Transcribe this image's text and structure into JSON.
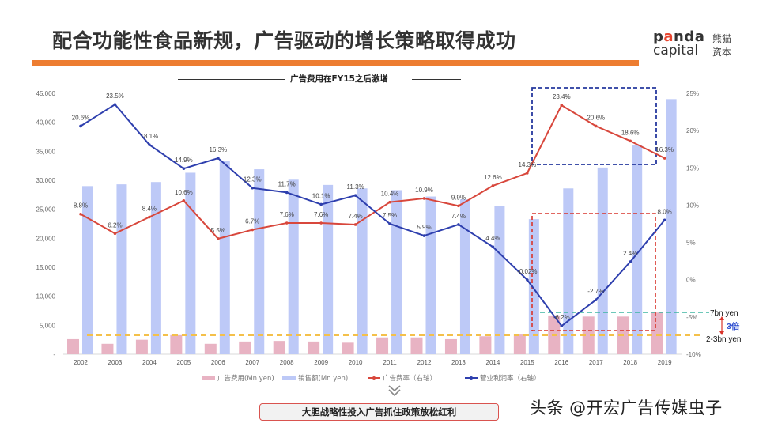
{
  "header": {
    "title": "配合功能性食品新规，广告驱动的增长策略取得成功",
    "accent_color": "#ED7D31",
    "logo": {
      "en_line1_pre": "p",
      "en_line1_o": "a",
      "en_line1_post": "nda",
      "en_line2": "capital",
      "cn_line1": "熊猫",
      "cn_line2": "资本"
    }
  },
  "subtitle": "广告费用在FY15之后激增",
  "colors": {
    "ad_cost_bar": "#E8B3C3",
    "sales_bar": "#BDC9F7",
    "ad_ratio_line": "#D8473C",
    "op_margin_line": "#2E3FAE",
    "blue_box": "#26399E",
    "red_box": "#D9342B",
    "teal_line": "#3DB5A2",
    "yellow_line": "#F4C04A",
    "arrow": "#D9342B",
    "multiplier_text": "#2F4FD0"
  },
  "chart_data": {
    "type": "bar",
    "title": "广告费用在FY15之后激增",
    "categories": [
      "2002",
      "2003",
      "2004",
      "2005",
      "2006",
      "2007",
      "2008",
      "2009",
      "2010",
      "2011",
      "2012",
      "2013",
      "2014",
      "2015",
      "2016",
      "2017",
      "2018",
      "2019"
    ],
    "left_axis": {
      "label": "Mn yen",
      "ylim": [
        0,
        45000
      ],
      "ticks": [
        "45,000",
        "40,000",
        "35,000",
        "30,000",
        "25,000",
        "20,000",
        "15,000",
        "10,000",
        "5,000",
        "-"
      ]
    },
    "right_axis": {
      "label": "%",
      "ylim": [
        -10,
        25
      ],
      "ticks": [
        "25%",
        "20%",
        "15%",
        "10%",
        "5%",
        "0%",
        "-5%",
        "-10%"
      ]
    },
    "grid": false,
    "legend_position": "bottom",
    "series": [
      {
        "name": "广告费用(Mn yen)",
        "type": "bar",
        "axis": "left",
        "values": [
          2600,
          1800,
          2500,
          3300,
          1800,
          2200,
          2300,
          2200,
          2000,
          2900,
          2900,
          2600,
          3100,
          3400,
          6700,
          6500,
          6500,
          7200
        ]
      },
      {
        "name": "销售额(Mn yen)",
        "type": "bar",
        "axis": "left",
        "values": [
          29000,
          29300,
          29700,
          31300,
          33400,
          31900,
          30100,
          29200,
          28600,
          28300,
          27200,
          26700,
          25500,
          23300,
          28600,
          32200,
          36100,
          44000
        ]
      },
      {
        "name": "广告费率（右轴）",
        "type": "line",
        "axis": "right",
        "values": [
          8.8,
          6.2,
          8.4,
          10.6,
          5.5,
          6.7,
          7.6,
          7.6,
          7.4,
          10.4,
          10.9,
          9.9,
          12.6,
          14.3,
          23.4,
          20.6,
          18.6,
          16.3
        ],
        "labels": [
          "8.8%",
          "6.2%",
          "8.4%",
          "10.6%",
          "5.5%",
          "6.7%",
          "7.6%",
          "7.6%",
          "7.4%",
          "10.4%",
          "10.9%",
          "9.9%",
          "12.6%",
          "14.3%",
          "23.4%",
          "20.6%",
          "18.6%",
          "16.3%"
        ]
      },
      {
        "name": "营业利润率（右轴）",
        "type": "line",
        "axis": "right",
        "values": [
          20.6,
          23.5,
          18.1,
          14.9,
          16.3,
          12.3,
          11.7,
          10.1,
          11.3,
          7.5,
          5.9,
          7.4,
          4.4,
          -0.02,
          -6.2,
          -2.7,
          2.4,
          8.0
        ],
        "labels": [
          "20.6%",
          "23.5%",
          "18.1%",
          "14.9%",
          "16.3%",
          "12.3%",
          "11.7%",
          "10.1%",
          "11.3%",
          "7.5%",
          "5.9%",
          "7.4%",
          "4.4%",
          "-0.02%",
          "-6.2%",
          "-2.7%",
          "2.4%",
          "8.0%"
        ]
      }
    ],
    "annotations": {
      "ref_high_label": "7bn yen",
      "ref_low_label": "2-3bn yen",
      "multiplier_label": "3倍",
      "blue_box_years": [
        "2015",
        "2019"
      ],
      "red_box_years": [
        "2015",
        "2019"
      ]
    }
  },
  "legend": [
    {
      "label": "广告费用(Mn yen)",
      "kind": "bar",
      "color_key": "ad_cost_bar"
    },
    {
      "label": "销售额(Mn yen)",
      "kind": "bar",
      "color_key": "sales_bar"
    },
    {
      "label": "广告费率（右轴）",
      "kind": "line",
      "color_key": "ad_ratio_line"
    },
    {
      "label": "营业利润率（右轴）",
      "kind": "line",
      "color_key": "op_margin_line"
    }
  ],
  "conclusion": "大胆战略性投入广告抓住政策放松红利",
  "watermark": "头条 @开宏广告传媒虫子"
}
